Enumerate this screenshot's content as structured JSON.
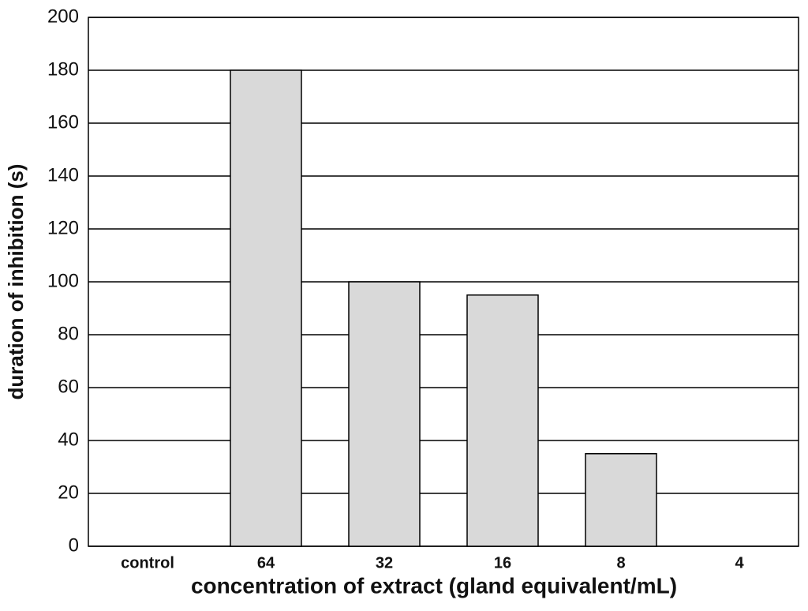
{
  "chart_data": {
    "type": "bar",
    "x_label": "concentration of extract (gland equivalent/mL)",
    "y_label": "duration of inhibition (s)",
    "categories": [
      "control",
      "64",
      "32",
      "16",
      "8",
      "4"
    ],
    "values": [
      0,
      180,
      100,
      95,
      35,
      0
    ],
    "color": "#d9d9d9",
    "ylim": [
      0,
      200
    ],
    "yticks": [
      0,
      20,
      40,
      60,
      80,
      100,
      120,
      140,
      160,
      180,
      200
    ],
    "grid": true
  }
}
